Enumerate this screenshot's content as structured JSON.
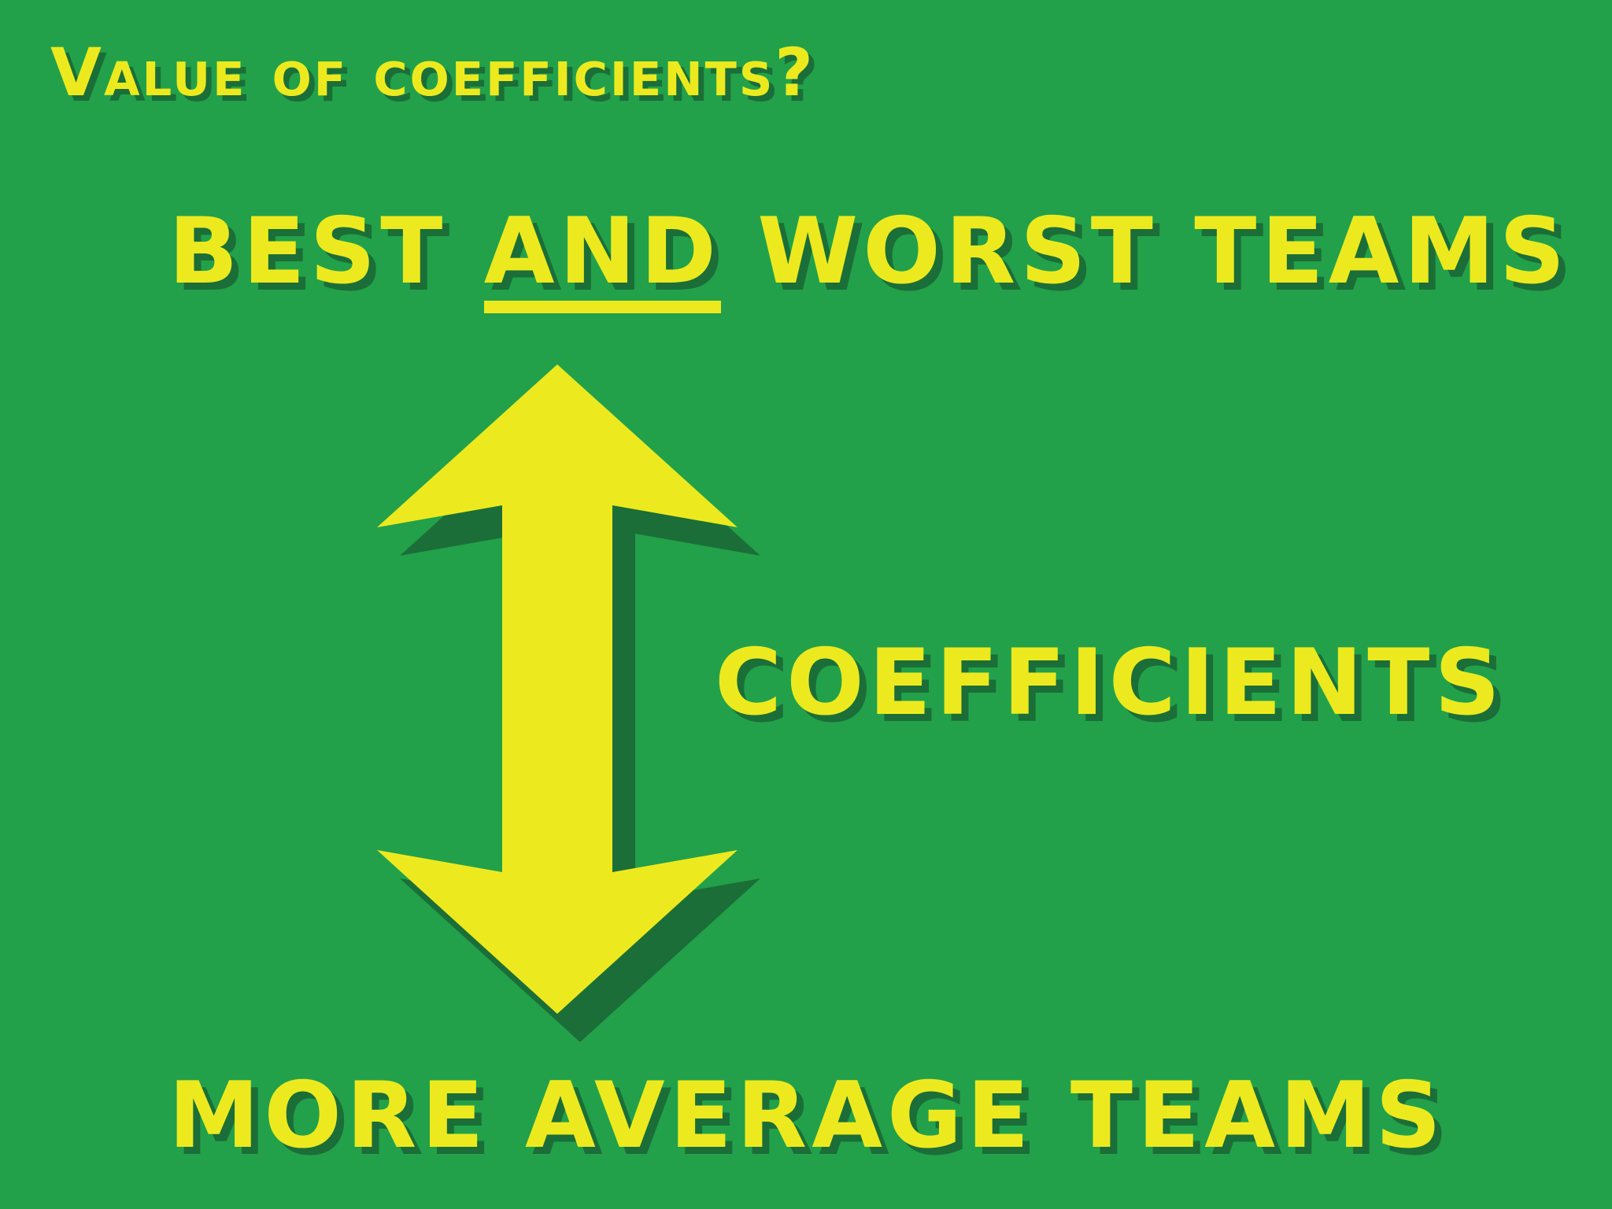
{
  "slide": {
    "title": "Value of coefficients?",
    "top_label": {
      "before": "BEST ",
      "underlined": "AND",
      "after": " WORST TEAMS"
    },
    "middle_label": "COEFFICIENTS",
    "bottom_label": "MORE AVERAGE TEAMS",
    "arrow_icon": "double-headed-vertical-arrow"
  },
  "colors": {
    "background": "#22a14a",
    "text": "#ecea1f",
    "shadow": "#1b6e37"
  }
}
